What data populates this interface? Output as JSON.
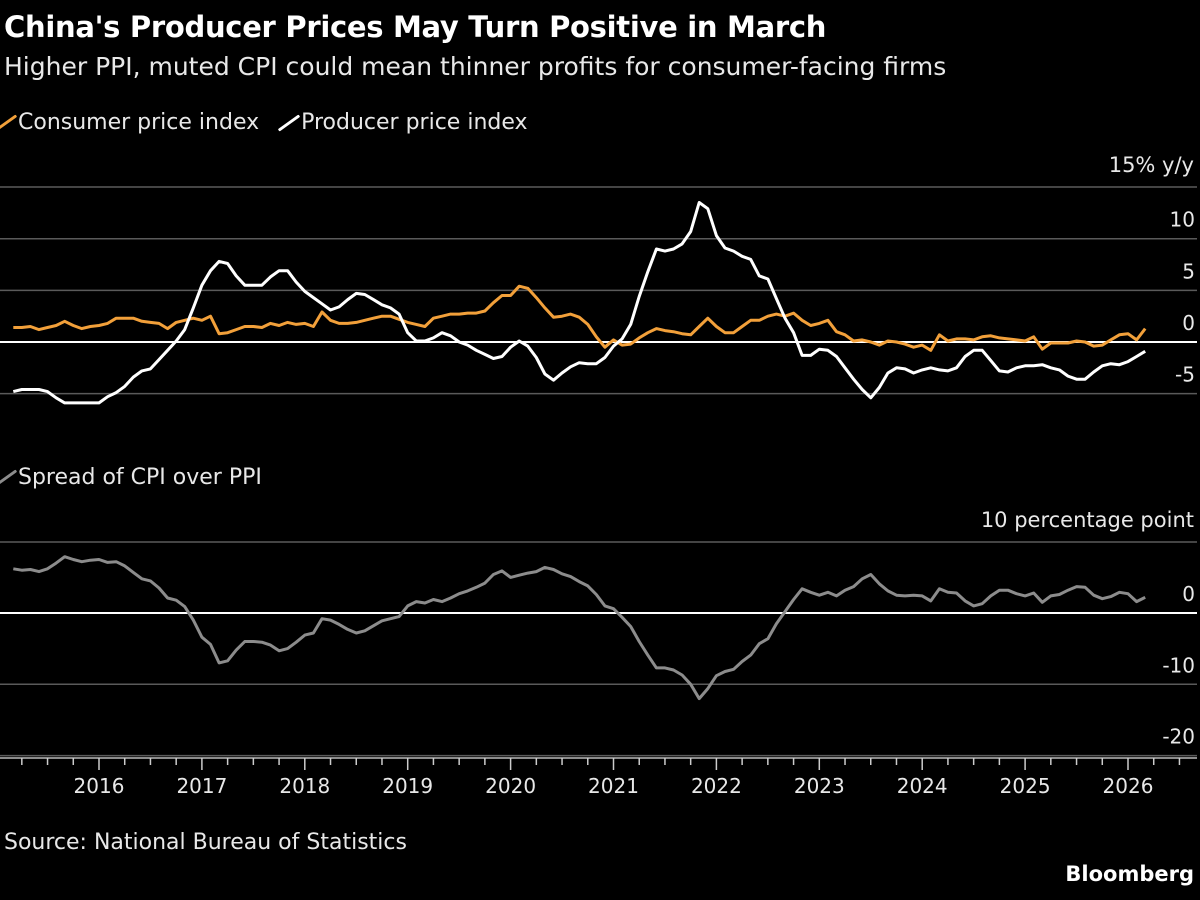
{
  "title": "China's Producer Prices May Turn Positive in March",
  "subtitle": "Higher PPI, muted CPI could mean thinner profits for consumer-facing firms",
  "source": "Source: National Bureau of Statistics",
  "brand": "Bloomberg",
  "colors": {
    "cpi": "#f2a03a",
    "ppi": "#ffffff",
    "spread": "#8c8c8c",
    "grid": "#5a5a5a",
    "background": "#000000"
  },
  "chart_data": [
    {
      "type": "line",
      "legend": [
        "Consumer price index",
        "Producer price index"
      ],
      "unit_label": "15% y/y",
      "ylim": [
        -5,
        15
      ],
      "yticks": [
        "10",
        "5",
        "0",
        "-5"
      ],
      "yticks_values": [
        10,
        5,
        0,
        -5
      ],
      "grid": true,
      "legend_placement": "top-left",
      "x_start": "2015-02",
      "x_frequency": "monthly",
      "x_end": "2026-02",
      "series": [
        {
          "name": "Consumer price index",
          "values": [
            1.4,
            1.4,
            1.5,
            1.2,
            1.4,
            1.6,
            2.0,
            1.6,
            1.3,
            1.5,
            1.6,
            1.8,
            2.3,
            2.3,
            2.3,
            2.0,
            1.9,
            1.8,
            1.3,
            1.9,
            2.1,
            2.3,
            2.1,
            2.5,
            0.8,
            0.9,
            1.2,
            1.5,
            1.5,
            1.4,
            1.8,
            1.6,
            1.9,
            1.7,
            1.8,
            1.5,
            2.9,
            2.1,
            1.8,
            1.8,
            1.9,
            2.1,
            2.3,
            2.5,
            2.5,
            2.2,
            1.9,
            1.7,
            1.5,
            2.3,
            2.5,
            2.7,
            2.7,
            2.8,
            2.8,
            3.0,
            3.8,
            4.5,
            4.5,
            5.4,
            5.2,
            4.3,
            3.3,
            2.4,
            2.5,
            2.7,
            2.4,
            1.7,
            0.5,
            -0.5,
            0.2,
            -0.3,
            -0.2,
            0.4,
            0.9,
            1.3,
            1.1,
            1.0,
            0.8,
            0.7,
            1.5,
            2.3,
            1.5,
            0.9,
            0.9,
            1.5,
            2.1,
            2.1,
            2.5,
            2.7,
            2.5,
            2.8,
            2.1,
            1.6,
            1.8,
            2.1,
            1.0,
            0.7,
            0.1,
            0.2,
            0.0,
            -0.3,
            0.1,
            0.0,
            -0.2,
            -0.5,
            -0.3,
            -0.8,
            0.7,
            0.1,
            0.3,
            0.3,
            0.2,
            0.5,
            0.6,
            0.4,
            0.3,
            0.2,
            0.1,
            0.5,
            -0.7,
            -0.1,
            -0.1,
            -0.1,
            0.1,
            0.0,
            -0.4,
            -0.3,
            0.2,
            0.7,
            0.8,
            0.2,
            1.3
          ]
        },
        {
          "name": "Producer price index",
          "values": [
            -4.8,
            -4.6,
            -4.6,
            -4.6,
            -4.8,
            -5.4,
            -5.9,
            -5.9,
            -5.9,
            -5.9,
            -5.9,
            -5.3,
            -4.9,
            -4.3,
            -3.4,
            -2.8,
            -2.6,
            -1.7,
            -0.8,
            0.1,
            1.2,
            3.3,
            5.5,
            6.9,
            7.8,
            7.6,
            6.4,
            5.5,
            5.5,
            5.5,
            6.3,
            6.9,
            6.9,
            5.8,
            4.9,
            4.3,
            3.7,
            3.1,
            3.4,
            4.1,
            4.7,
            4.6,
            4.1,
            3.6,
            3.3,
            2.7,
            0.9,
            0.1,
            0.1,
            0.4,
            0.9,
            0.6,
            0.0,
            -0.3,
            -0.8,
            -1.2,
            -1.6,
            -1.4,
            -0.5,
            0.1,
            -0.4,
            -1.5,
            -3.1,
            -3.7,
            -3.0,
            -2.4,
            -2.0,
            -2.1,
            -2.1,
            -1.5,
            -0.4,
            0.3,
            1.7,
            4.4,
            6.8,
            9.0,
            8.8,
            9.0,
            9.5,
            10.7,
            13.5,
            12.9,
            10.3,
            9.1,
            8.8,
            8.3,
            8.0,
            6.4,
            6.1,
            4.2,
            2.3,
            0.9,
            -1.3,
            -1.3,
            -0.7,
            -0.8,
            -1.4,
            -2.5,
            -3.6,
            -4.6,
            -5.4,
            -4.4,
            -3.0,
            -2.5,
            -2.6,
            -3.0,
            -2.7,
            -2.5,
            -2.7,
            -2.8,
            -2.5,
            -1.4,
            -0.8,
            -0.8,
            -1.8,
            -2.8,
            -2.9,
            -2.5,
            -2.3,
            -2.3,
            -2.2,
            -2.5,
            -2.7,
            -3.3,
            -3.6,
            -3.6,
            -2.9,
            -2.3,
            -2.1,
            -2.2,
            -1.9,
            -1.4,
            -0.9
          ]
        }
      ]
    },
    {
      "type": "line",
      "legend": [
        "Spread of CPI over PPI"
      ],
      "unit_label": "10 percentage point",
      "ylim": [
        -20,
        10
      ],
      "yticks": [
        "0",
        "-10",
        "-20"
      ],
      "yticks_values": [
        0,
        -10,
        -20
      ],
      "grid": true,
      "legend_placement": "top-left",
      "x_start": "2015-02",
      "x_frequency": "monthly",
      "x_end": "2026-02",
      "xticks": [
        "2016",
        "2017",
        "2018",
        "2019",
        "2020",
        "2021",
        "2022",
        "2023",
        "2024",
        "2025",
        "2026"
      ],
      "series": [
        {
          "name": "Spread of CPI over PPI",
          "values": [
            6.2,
            6.0,
            6.1,
            5.8,
            6.2,
            7.0,
            7.9,
            7.5,
            7.2,
            7.4,
            7.5,
            7.1,
            7.2,
            6.6,
            5.7,
            4.8,
            4.5,
            3.5,
            2.1,
            1.8,
            0.9,
            -1.0,
            -3.4,
            -4.4,
            -7.0,
            -6.7,
            -5.2,
            -4.0,
            -4.0,
            -4.1,
            -4.5,
            -5.3,
            -5.0,
            -4.1,
            -3.1,
            -2.8,
            -0.8,
            -1.0,
            -1.6,
            -2.3,
            -2.8,
            -2.5,
            -1.8,
            -1.1,
            -0.8,
            -0.5,
            1.0,
            1.6,
            1.4,
            1.9,
            1.6,
            2.1,
            2.7,
            3.1,
            3.6,
            4.2,
            5.4,
            5.9,
            5.0,
            5.3,
            5.6,
            5.8,
            6.4,
            6.1,
            5.5,
            5.1,
            4.4,
            3.8,
            2.6,
            1.0,
            0.6,
            -0.6,
            -1.9,
            -4.0,
            -5.9,
            -7.7,
            -7.7,
            -8.0,
            -8.7,
            -10.0,
            -12.0,
            -10.6,
            -8.8,
            -8.2,
            -7.9,
            -6.8,
            -5.9,
            -4.3,
            -3.6,
            -1.5,
            0.2,
            1.9,
            3.4,
            2.9,
            2.5,
            2.9,
            2.4,
            3.2,
            3.7,
            4.8,
            5.4,
            4.1,
            3.1,
            2.5,
            2.4,
            2.5,
            2.4,
            1.7,
            3.4,
            2.9,
            2.8,
            1.7,
            1.0,
            1.3,
            2.4,
            3.2,
            3.2,
            2.7,
            2.4,
            2.8,
            1.5,
            2.4,
            2.6,
            3.2,
            3.7,
            3.6,
            2.5,
            2.0,
            2.3,
            2.9,
            2.7,
            1.6,
            2.2
          ]
        }
      ]
    }
  ]
}
